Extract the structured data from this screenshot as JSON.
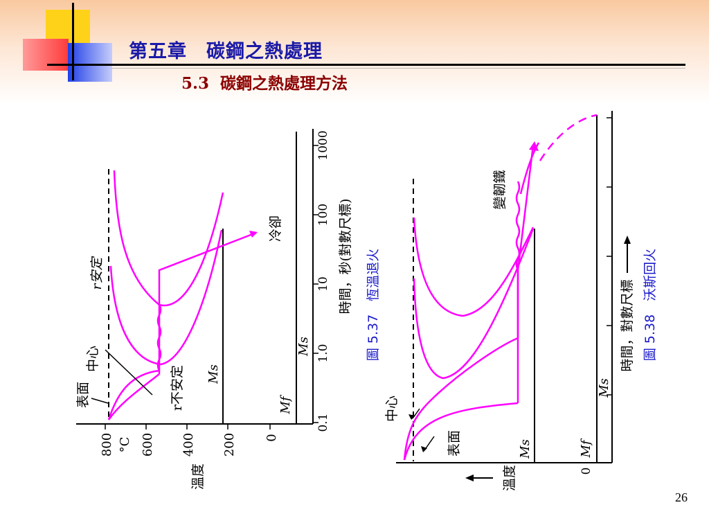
{
  "header": {
    "title": "第五章　碳鋼之熱處理",
    "subtitle": "5.3  碳鋼之熱處理方法"
  },
  "colors": {
    "curve": "#ff00ff",
    "title": "#1a1aa8",
    "subtitle": "#8b0000",
    "caption": "#1a1acc"
  },
  "diagram_left": {
    "caption": "圖 5.37　恆溫退火",
    "time_axis_label": "時間，秒(對數尺標)",
    "time_ticks": [
      "0.1",
      "1.0",
      "10",
      "100",
      "1000"
    ],
    "temp_axis_label": "溫度",
    "temp_unit": "°C",
    "temp_ticks": [
      "800",
      "600",
      "400",
      "200",
      "0"
    ],
    "labels": {
      "gamma_stable": "r安定",
      "gamma_unstable": "r不安定",
      "center": "中心",
      "surface": "表面",
      "quench": "冷卻",
      "ms": "Ms",
      "mf": "Mf"
    }
  },
  "diagram_right": {
    "caption": "圖 5.38　沃斯回火",
    "time_axis_label": "時間，對數尺標",
    "temp_axis_label": "溫度",
    "zero_label": "0",
    "labels": {
      "bainite": "變韌鐵",
      "center": "中心",
      "surface": "表面",
      "ms": "Ms",
      "mf": "Mf"
    }
  },
  "page_number": "26"
}
